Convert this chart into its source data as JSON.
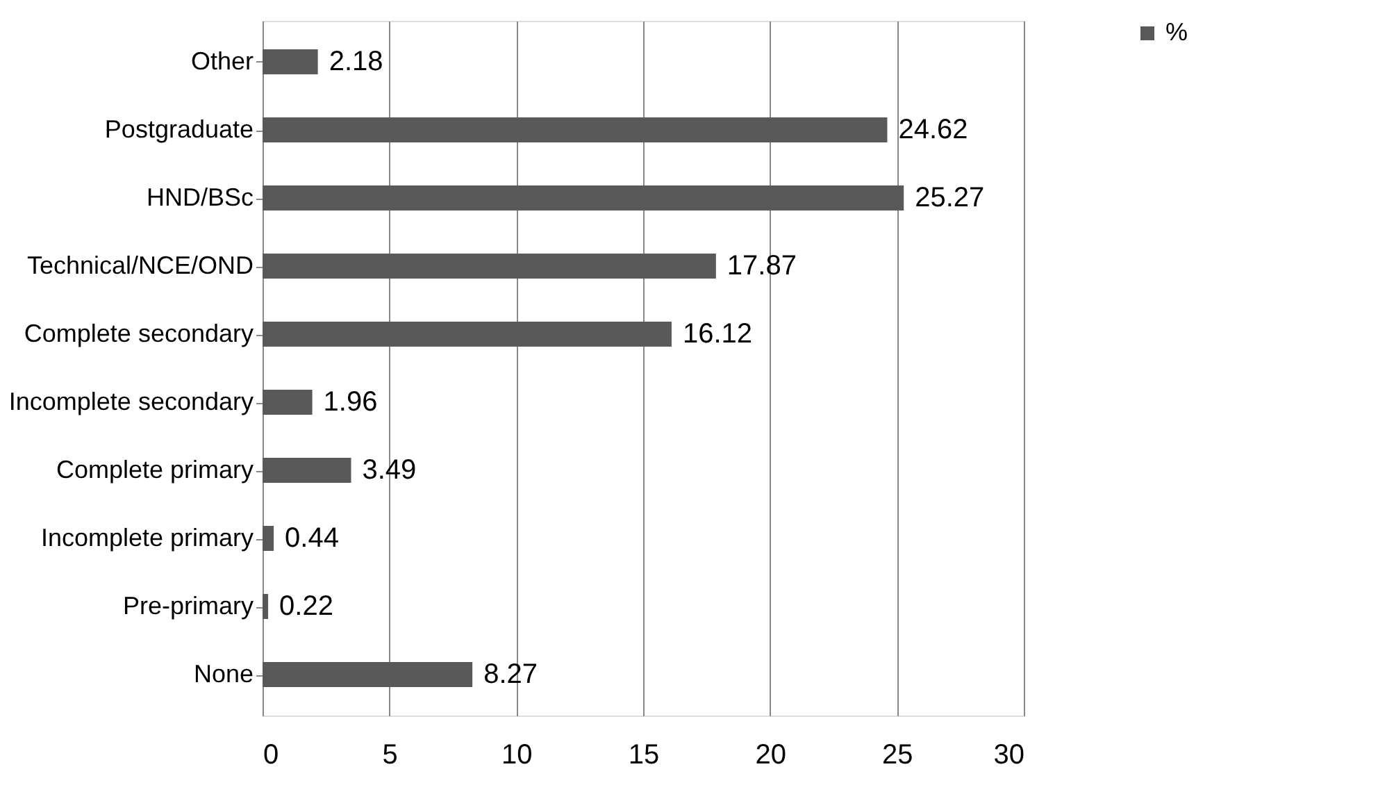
{
  "chart_data": {
    "type": "bar",
    "orientation": "horizontal",
    "categories": [
      "Other",
      "Postgraduate",
      "HND/BSc",
      "Technical/NCE/OND",
      "Complete secondary",
      "Incomplete secondary",
      "Complete primary",
      "Incomplete primary",
      "Pre-primary",
      "None"
    ],
    "series": [
      {
        "name": "%",
        "color": "#595959",
        "values": [
          2.18,
          24.62,
          25.27,
          17.87,
          16.12,
          1.96,
          3.49,
          0.44,
          0.22,
          8.27
        ]
      }
    ],
    "xlim": [
      0,
      30
    ],
    "xticks": [
      0,
      5,
      10,
      15,
      20,
      25,
      30
    ],
    "grid": "x",
    "legend": "right",
    "data_labels": true
  }
}
